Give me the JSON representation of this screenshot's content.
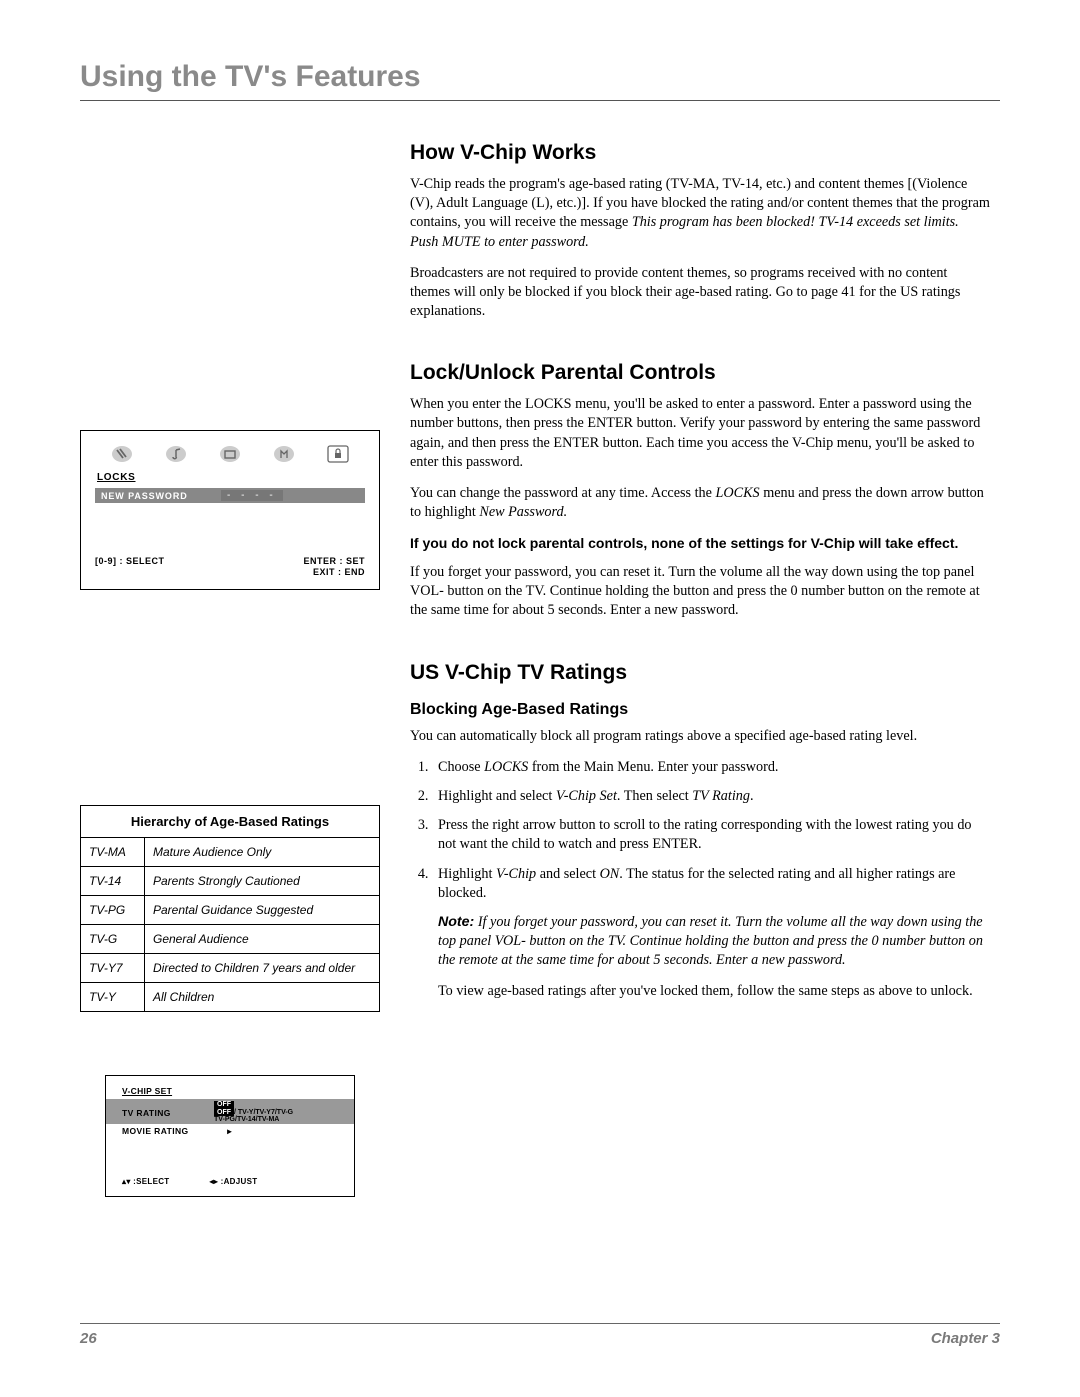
{
  "page_title": "Using the TV's Features",
  "section1": {
    "heading": "How V-Chip Works",
    "p1_a": "V-Chip reads the program's age-based rating (TV-MA, TV-14, etc.) and content themes [(Violence (V), Adult Language (L), etc.)]. If you have blocked the rating and/or content themes that the program contains, you will receive the message ",
    "p1_i": "This program has been blocked! TV-14 exceeds set limits. Push MUTE to enter password.",
    "p2": "Broadcasters are not required to provide content themes, so programs received with no content themes will only be blocked if you block their age-based rating. Go to page 41 for the US ratings explanations."
  },
  "section2": {
    "heading": "Lock/Unlock Parental Controls",
    "p1": "When you enter the LOCKS menu, you'll be asked to enter a password. Enter a password using the number buttons, then press the ENTER button. Verify your password by entering the same password again, and then press the ENTER button. Each time you access the V-Chip menu, you'll be asked to enter this password.",
    "p2_a": "You can change the password at any time. Access the ",
    "p2_i1": "LOCKS",
    "p2_b": " menu and press the down arrow button to highlight ",
    "p2_i2": "New Password.",
    "bold": "If you do not lock parental controls, none of the settings for V-Chip will take effect.",
    "p3": "If you forget your password, you can reset it. Turn the volume all the way down using the top panel VOL- button on the TV. Continue holding the button and press the 0 number button on the remote at the same time for about 5 seconds. Enter a new password."
  },
  "section3": {
    "heading": "US V-Chip TV Ratings",
    "subheading": "Blocking Age-Based Ratings",
    "p1": "You can automatically block all program ratings above a specified age-based rating level.",
    "steps": {
      "s1_a": "Choose ",
      "s1_i": "LOCKS",
      "s1_b": " from the Main Menu. Enter your password.",
      "s2_a": "Highlight and select ",
      "s2_i1": "V-Chip Set",
      "s2_b": ". Then select ",
      "s2_i2": "TV Rating",
      "s2_c": ".",
      "s3": "Press the right arrow button to scroll to the rating corresponding with the lowest rating you do not want the child to watch and press ENTER.",
      "s4_a": "Highlight ",
      "s4_i1": "V-Chip",
      "s4_b": " and select ",
      "s4_i2": "ON",
      "s4_c": ". The status for the selected rating and all higher ratings are blocked."
    },
    "note_label": "Note:",
    "note_body": " If you forget your password, you can reset it. Turn the volume all the way down using the top panel VOL- button on the TV. Continue holding the button and press the 0 number button on the remote at the same time for about 5 seconds. Enter a new password.",
    "p_last": "To view age-based ratings after you've locked them, follow the same steps as above to unlock."
  },
  "locks_panel": {
    "label": "LOCKS",
    "row_label": "NEW PASSWORD",
    "dashes": "- - - -",
    "footer_left": "[0-9] : SELECT",
    "footer_r1": "ENTER : SET",
    "footer_r2": "EXIT : END"
  },
  "ratings_table": {
    "header": "Hierarchy of Age-Based Ratings",
    "rows": [
      {
        "code": "TV-MA",
        "desc": "Mature Audience Only"
      },
      {
        "code": "TV-14",
        "desc": "Parents Strongly Cautioned"
      },
      {
        "code": "TV-PG",
        "desc": "Parental Guidance Suggested"
      },
      {
        "code": "TV-G",
        "desc": "General Audience"
      },
      {
        "code": "TV-Y7",
        "desc": "Directed to Children 7 years and older"
      },
      {
        "code": "TV-Y",
        "desc": "All Children"
      }
    ]
  },
  "vchip_panel": {
    "title": "V-CHIP SET",
    "tv_rating_label": "TV RATING",
    "off": "OFF",
    "opts_l1": "/ TV-Y/TV-Y7/TV-G",
    "opts_l2": "TV-PG/TV-14/TV-MA",
    "movie_label": "MOVIE RATING",
    "arrow": "▸",
    "footer_l": "▴▾ :SELECT",
    "footer_r": "◂▸ :ADJUST"
  },
  "footer": {
    "page": "26",
    "chapter": "Chapter 3"
  }
}
